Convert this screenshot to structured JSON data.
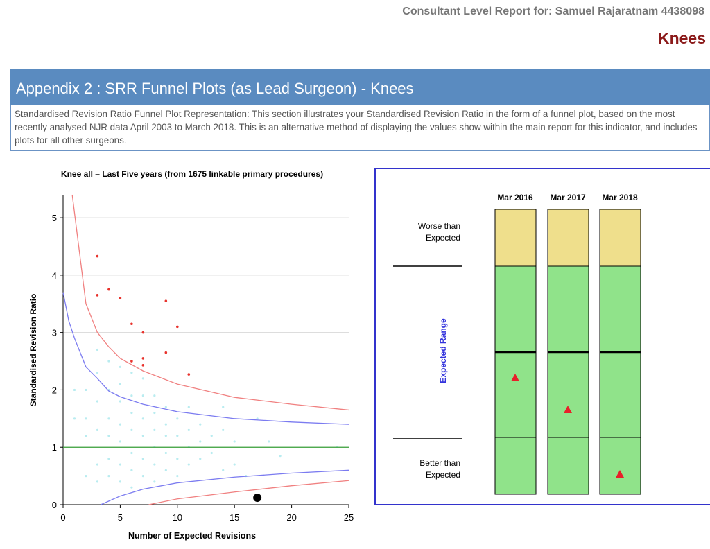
{
  "header": {
    "report_for": "Consultant Level Report for: Samuel Rajaratnam 4438098",
    "section": "Knees"
  },
  "banner": {
    "title": "Appendix 2 : SRR Funnel Plots (as Lead Surgeon) - Knees",
    "description": "Standardised Revision Ratio Funnel Plot Representation: This section illustrates your Standardised Revision Ratio in the form of a funnel plot, based on the most recently analysed NJR data April 2003 to March 2018. This is an alternative method of displaying the values show within the main report for this indicator, and includes plots for all other surgeons."
  },
  "chart_data": {
    "type": "scatter",
    "title": "Knee all – Last Five years (from 1675 linkable primary procedures)",
    "x_label": "Number of Expected Revisions",
    "y_label": "Standardised Revision Ratio",
    "xlim": [
      0,
      25
    ],
    "ylim": [
      0,
      5.4
    ],
    "xticks": [
      0,
      5,
      10,
      15,
      20,
      25
    ],
    "yticks": [
      0,
      1,
      2,
      3,
      4,
      5
    ],
    "grid": true,
    "series": [
      {
        "kind": "points",
        "color": "#b9ecf0",
        "size": 1.6,
        "x": [
          1,
          1,
          2,
          2,
          2,
          2,
          3,
          3,
          3,
          3,
          3,
          3,
          4,
          4,
          4,
          4,
          4,
          4,
          5,
          5,
          5,
          5,
          5,
          5,
          5,
          6,
          6,
          6,
          6,
          6,
          6,
          6,
          7,
          7,
          7,
          7,
          7,
          7,
          8,
          8,
          8,
          8,
          8,
          8,
          9,
          9,
          9,
          9,
          9,
          10,
          10,
          10,
          10,
          11,
          11,
          11,
          11,
          12,
          12,
          12,
          13,
          13,
          14,
          14,
          14,
          15,
          15,
          16,
          17,
          18,
          19,
          24
        ],
        "values": [
          2.0,
          1.5,
          2.0,
          1.5,
          1.2,
          0.5,
          2.7,
          2.3,
          1.8,
          1.3,
          0.7,
          0.4,
          2.5,
          2.0,
          1.5,
          1.2,
          0.8,
          0.5,
          2.4,
          2.1,
          1.8,
          1.4,
          1.1,
          0.7,
          0.4,
          2.3,
          1.9,
          1.6,
          1.3,
          0.9,
          0.6,
          0.3,
          2.2,
          1.9,
          1.5,
          1.2,
          0.8,
          0.5,
          1.9,
          1.6,
          1.3,
          1.0,
          0.7,
          0.4,
          1.7,
          1.4,
          1.2,
          0.9,
          0.6,
          1.5,
          1.2,
          0.8,
          0.5,
          1.7,
          1.3,
          1.0,
          0.7,
          1.4,
          1.1,
          0.8,
          1.2,
          0.9,
          1.7,
          1.3,
          0.6,
          1.1,
          0.7,
          0.5,
          1.5,
          1.1,
          0.85,
          1.0
        ]
      },
      {
        "kind": "points",
        "color": "#e8322c",
        "size": 1.8,
        "x": [
          3,
          3,
          4,
          5,
          6,
          7,
          6,
          7,
          7,
          9,
          9,
          10,
          11
        ],
        "values": [
          4.33,
          3.65,
          3.75,
          3.6,
          3.15,
          3.0,
          2.5,
          2.55,
          2.43,
          3.55,
          2.65,
          3.1,
          2.27
        ]
      },
      {
        "kind": "line",
        "color": "#f08080",
        "x": [
          0.8,
          2,
          3,
          4,
          5,
          7,
          10,
          15,
          20,
          25
        ],
        "values": [
          5.4,
          3.5,
          3.0,
          2.75,
          2.55,
          2.33,
          2.1,
          1.87,
          1.75,
          1.65
        ]
      },
      {
        "kind": "line",
        "color": "#7b7bf0",
        "x": [
          0,
          0.5,
          1,
          2,
          3,
          4,
          5,
          7,
          10,
          15,
          20,
          25
        ],
        "values": [
          3.7,
          3.2,
          2.9,
          2.4,
          2.2,
          1.98,
          1.88,
          1.75,
          1.62,
          1.5,
          1.44,
          1.4
        ]
      },
      {
        "kind": "line",
        "color": "#3aa03a",
        "x": [
          0,
          25
        ],
        "values": [
          1,
          1
        ]
      },
      {
        "kind": "line",
        "color": "#7b7bf0",
        "x": [
          3.3,
          5,
          7,
          10,
          15,
          20,
          25
        ],
        "values": [
          0,
          0.15,
          0.27,
          0.38,
          0.48,
          0.55,
          0.6
        ]
      },
      {
        "kind": "line",
        "color": "#f08080",
        "x": [
          7.5,
          10,
          15,
          20,
          25
        ],
        "values": [
          0,
          0.1,
          0.22,
          0.33,
          0.42
        ]
      },
      {
        "kind": "points",
        "color": "#000000",
        "size": 6,
        "x": [
          17
        ],
        "values": [
          0.12
        ]
      }
    ]
  },
  "status_panel": {
    "columns": [
      "Mar 2016",
      "Mar 2017",
      "Mar 2018"
    ],
    "rows": [
      "Worse than Expected",
      "Expected Range",
      "Better than Expected"
    ]
  }
}
